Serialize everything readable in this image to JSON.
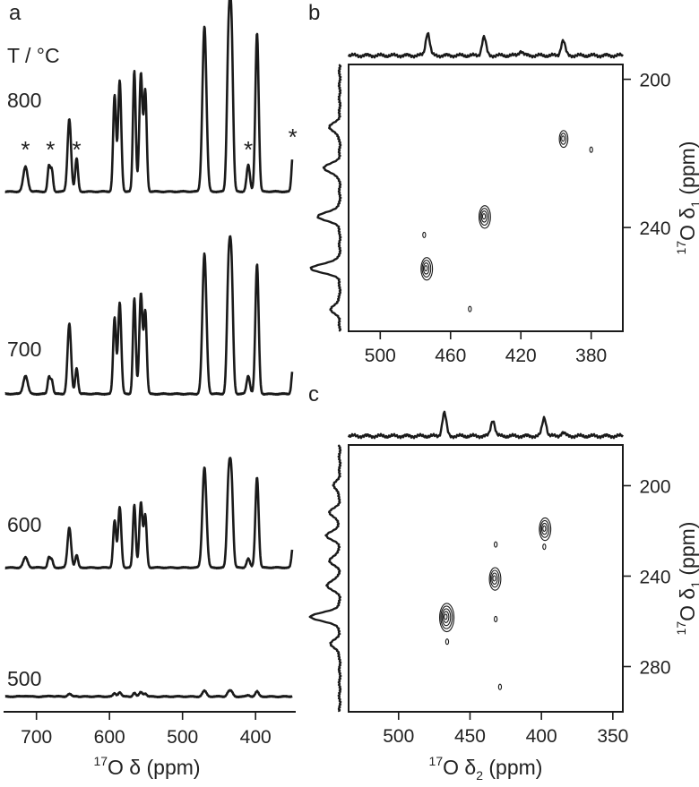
{
  "chart_data": [
    {
      "panel": "a",
      "type": "line",
      "panel_label": "a",
      "legend_title": "T / °C",
      "xlabel_sup": "17",
      "xlabel": "O δ (ppm)",
      "xlim": [
        745,
        345
      ],
      "x_reversed": true,
      "xticks": [
        700,
        600,
        500,
        400
      ],
      "asterisk": "*",
      "spinning_sidebands": [
        715,
        682,
        645,
        410,
        349
      ],
      "peaks": [
        {
          "x": 715,
          "w": 3.5
        },
        {
          "x": 683,
          "w": 2.0
        },
        {
          "x": 679,
          "w": 2.0
        },
        {
          "x": 655,
          "w": 2.8
        },
        {
          "x": 645,
          "w": 2.2
        },
        {
          "x": 593,
          "w": 2.3
        },
        {
          "x": 586,
          "w": 2.5
        },
        {
          "x": 566,
          "w": 2.2
        },
        {
          "x": 557,
          "w": 2.5
        },
        {
          "x": 551,
          "w": 2.3
        },
        {
          "x": 470,
          "w": 3.2
        },
        {
          "x": 437,
          "w": 2.6
        },
        {
          "x": 433,
          "w": 2.6
        },
        {
          "x": 410,
          "w": 2.6
        },
        {
          "x": 398,
          "w": 2.6
        },
        {
          "x": 349,
          "w": 2.0
        }
      ],
      "series": [
        {
          "name": "800",
          "label": "800",
          "amplitudes": [
            0.15,
            0.15,
            0.13,
            0.44,
            0.2,
            0.58,
            0.67,
            0.73,
            0.71,
            0.6,
            1.0,
            0.85,
            0.91,
            0.16,
            0.96,
            0.22
          ]
        },
        {
          "name": "700",
          "label": "700",
          "amplitudes": [
            0.12,
            0.11,
            0.09,
            0.46,
            0.17,
            0.5,
            0.6,
            0.63,
            0.66,
            0.54,
            0.92,
            0.75,
            0.78,
            0.12,
            0.85,
            0.17
          ]
        },
        {
          "name": "600",
          "label": "600",
          "amplitudes": [
            0.09,
            0.09,
            0.07,
            0.36,
            0.11,
            0.42,
            0.54,
            0.56,
            0.58,
            0.46,
            0.9,
            0.72,
            0.74,
            0.08,
            0.81,
            0.18
          ]
        },
        {
          "name": "500",
          "label": "500",
          "amplitudes": [
            0.01,
            0.01,
            0.01,
            0.04,
            0.01,
            0.05,
            0.07,
            0.06,
            0.07,
            0.05,
            0.09,
            0.07,
            0.07,
            0.02,
            0.08,
            0.01
          ]
        }
      ]
    },
    {
      "panel": "b",
      "type": "heatmap",
      "panel_label": "b",
      "xlabel": "",
      "ylabel_sup": "17",
      "ylabel_main": "O δ",
      "ylabel_sub": "1",
      "ylabel_unit": "(ppm)",
      "xlim": [
        518,
        362
      ],
      "ylim": [
        196,
        268
      ],
      "x_reversed": true,
      "xticks": [
        500,
        460,
        420,
        380
      ],
      "yticks": [
        200,
        240
      ],
      "contour_peaks": [
        {
          "x": 474,
          "y": 251,
          "levels": 4
        },
        {
          "x": 441,
          "y": 237,
          "levels": 4
        },
        {
          "x": 396,
          "y": 216,
          "levels": 3
        },
        {
          "x": 380,
          "y": 219,
          "levels": 1
        },
        {
          "x": 475,
          "y": 242,
          "levels": 1
        },
        {
          "x": 449,
          "y": 262,
          "levels": 1
        }
      ],
      "top_projection_peaks": [
        {
          "x": 473,
          "h": 1.0
        },
        {
          "x": 441,
          "h": 0.8
        },
        {
          "x": 396,
          "h": 0.65
        },
        {
          "x": 420,
          "h": 0.2
        }
      ],
      "left_projection_peaks": [
        {
          "y": 213,
          "h": 0.35
        },
        {
          "y": 224,
          "h": 0.55
        },
        {
          "y": 237,
          "h": 0.75
        },
        {
          "y": 251,
          "h": 1.0
        },
        {
          "y": 262,
          "h": 0.3
        }
      ]
    },
    {
      "panel": "c",
      "type": "heatmap",
      "panel_label": "c",
      "xlabel_sup": "17",
      "xlabel_main": "O δ",
      "xlabel_sub": "2",
      "xlabel_unit": "(ppm)",
      "ylabel_sup": "17",
      "ylabel_main": "O δ",
      "ylabel_sub": "1",
      "ylabel_unit": "(ppm)",
      "xlim": [
        535,
        343
      ],
      "ylim": [
        182,
        300
      ],
      "x_reversed": true,
      "xticks": [
        500,
        450,
        400,
        350
      ],
      "yticks": [
        200,
        240,
        280
      ],
      "contour_peaks": [
        {
          "x": 467,
          "y": 258,
          "levels": 5
        },
        {
          "x": 433,
          "y": 241,
          "levels": 4
        },
        {
          "x": 398,
          "y": 219,
          "levels": 4
        },
        {
          "x": 398,
          "y": 227,
          "levels": 1
        },
        {
          "x": 466,
          "y": 269,
          "levels": 1
        },
        {
          "x": 432,
          "y": 226,
          "levels": 1
        },
        {
          "x": 432,
          "y": 259,
          "levels": 1
        },
        {
          "x": 429,
          "y": 289,
          "levels": 1
        }
      ],
      "top_projection_peaks": [
        {
          "x": 468,
          "h": 1.0
        },
        {
          "x": 434,
          "h": 0.7
        },
        {
          "x": 398,
          "h": 0.8
        },
        {
          "x": 385,
          "h": 0.15
        }
      ],
      "left_projection_peaks": [
        {
          "y": 200,
          "h": 0.2
        },
        {
          "y": 212,
          "h": 0.35
        },
        {
          "y": 222,
          "h": 0.45
        },
        {
          "y": 233,
          "h": 0.35
        },
        {
          "y": 244,
          "h": 0.45
        },
        {
          "y": 258,
          "h": 1.0
        },
        {
          "y": 270,
          "h": 0.3
        }
      ]
    }
  ]
}
